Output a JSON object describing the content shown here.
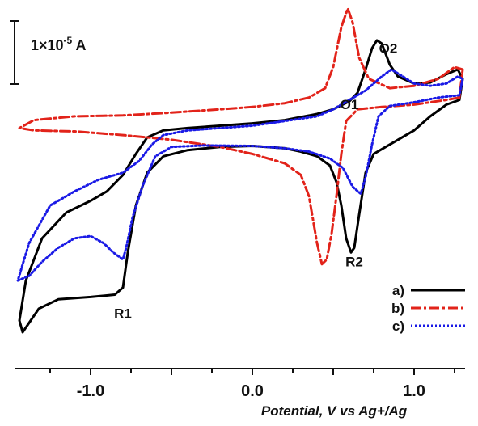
{
  "chart_data": {
    "type": "line",
    "xlabel": "Potential, V vs Ag+/Ag",
    "ylabel": "",
    "xlim": [
      -1.45,
      1.3
    ],
    "xticks": [
      {
        "value": -1.0,
        "label": "-1.0"
      },
      {
        "value": 0.0,
        "label": "0.0"
      },
      {
        "value": 1.0,
        "label": "1.0"
      }
    ],
    "minor_step": 0.25,
    "y_units": "×10^-5 A",
    "ylim": [
      -4.8,
      2.4
    ],
    "grid": false,
    "legend_position": "bottom-right",
    "scale_bar": {
      "label_base": "1×10",
      "label_exp": "-5",
      "label_unit": " A",
      "value": 1.0
    },
    "annotations": [
      {
        "text": "O1",
        "x": 0.6,
        "y": 0.45
      },
      {
        "text": "O2",
        "x": 0.84,
        "y": 1.65
      },
      {
        "text": "R1",
        "x": -0.8,
        "y": -4.0
      },
      {
        "text": "R2",
        "x": 0.63,
        "y": -2.9
      }
    ],
    "series": [
      {
        "name": "a)",
        "color": "#000000",
        "dash": "",
        "points": [
          [
            1.28,
            0.65
          ],
          [
            1.2,
            0.55
          ],
          [
            1.1,
            0.3
          ],
          [
            1.0,
            0.0
          ],
          [
            0.9,
            -0.2
          ],
          [
            0.8,
            -0.4
          ],
          [
            0.75,
            -0.5
          ],
          [
            0.7,
            -0.9
          ],
          [
            0.66,
            -1.8
          ],
          [
            0.63,
            -2.5
          ],
          [
            0.61,
            -2.6
          ],
          [
            0.58,
            -2.3
          ],
          [
            0.55,
            -1.6
          ],
          [
            0.52,
            -1.1
          ],
          [
            0.48,
            -0.75
          ],
          [
            0.4,
            -0.55
          ],
          [
            0.3,
            -0.45
          ],
          [
            0.2,
            -0.38
          ],
          [
            0.0,
            -0.33
          ],
          [
            -0.2,
            -0.35
          ],
          [
            -0.4,
            -0.42
          ],
          [
            -0.55,
            -0.55
          ],
          [
            -0.65,
            -0.9
          ],
          [
            -0.72,
            -1.6
          ],
          [
            -0.77,
            -2.6
          ],
          [
            -0.8,
            -3.35
          ],
          [
            -0.85,
            -3.5
          ],
          [
            -1.0,
            -3.55
          ],
          [
            -1.2,
            -3.6
          ],
          [
            -1.32,
            -3.8
          ],
          [
            -1.42,
            -4.3
          ]
        ],
        "points_return": [
          [
            -1.44,
            -4.05
          ],
          [
            -1.4,
            -3.2
          ],
          [
            -1.3,
            -2.3
          ],
          [
            -1.15,
            -1.75
          ],
          [
            -1.0,
            -1.5
          ],
          [
            -0.9,
            -1.3
          ],
          [
            -0.8,
            -0.95
          ],
          [
            -0.72,
            -0.5
          ],
          [
            -0.65,
            -0.15
          ],
          [
            -0.55,
            0.0
          ],
          [
            -0.4,
            0.05
          ],
          [
            -0.2,
            0.1
          ],
          [
            0.0,
            0.15
          ],
          [
            0.2,
            0.22
          ],
          [
            0.4,
            0.35
          ],
          [
            0.5,
            0.45
          ],
          [
            0.6,
            0.62
          ],
          [
            0.65,
            0.8
          ],
          [
            0.7,
            1.3
          ],
          [
            0.74,
            1.75
          ],
          [
            0.77,
            1.92
          ],
          [
            0.8,
            1.85
          ],
          [
            0.85,
            1.4
          ],
          [
            0.9,
            1.15
          ],
          [
            1.0,
            1.0
          ],
          [
            1.1,
            1.02
          ],
          [
            1.2,
            1.2
          ],
          [
            1.27,
            1.3
          ],
          [
            1.3,
            1.1
          ],
          [
            1.28,
            0.65
          ]
        ]
      },
      {
        "name": "b)",
        "color": "#e2231a",
        "dash": "12 4 3 4",
        "points": [
          [
            1.28,
            0.7
          ],
          [
            1.2,
            0.65
          ],
          [
            1.0,
            0.55
          ],
          [
            0.8,
            0.5
          ],
          [
            0.65,
            0.45
          ],
          [
            0.58,
            0.2
          ],
          [
            0.55,
            -0.5
          ],
          [
            0.52,
            -1.4
          ],
          [
            0.49,
            -2.2
          ],
          [
            0.46,
            -2.75
          ],
          [
            0.43,
            -2.85
          ],
          [
            0.4,
            -2.4
          ],
          [
            0.35,
            -1.4
          ],
          [
            0.3,
            -0.95
          ],
          [
            0.2,
            -0.7
          ],
          [
            0.0,
            -0.5
          ],
          [
            -0.2,
            -0.35
          ],
          [
            -0.5,
            -0.2
          ],
          [
            -0.8,
            -0.1
          ],
          [
            -1.1,
            -0.02
          ],
          [
            -1.35,
            0.0
          ],
          [
            -1.44,
            0.05
          ]
        ],
        "points_return": [
          [
            -1.44,
            0.05
          ],
          [
            -1.35,
            0.22
          ],
          [
            -1.1,
            0.3
          ],
          [
            -0.8,
            0.32
          ],
          [
            -0.5,
            0.38
          ],
          [
            -0.2,
            0.45
          ],
          [
            0.0,
            0.5
          ],
          [
            0.2,
            0.58
          ],
          [
            0.35,
            0.7
          ],
          [
            0.45,
            0.9
          ],
          [
            0.5,
            1.35
          ],
          [
            0.55,
            2.2
          ],
          [
            0.59,
            2.6
          ],
          [
            0.62,
            2.3
          ],
          [
            0.66,
            1.55
          ],
          [
            0.72,
            1.1
          ],
          [
            0.85,
            0.9
          ],
          [
            1.0,
            0.95
          ],
          [
            1.15,
            1.1
          ],
          [
            1.25,
            1.35
          ],
          [
            1.3,
            1.3
          ],
          [
            1.28,
            0.7
          ]
        ]
      },
      {
        "name": "c)",
        "color": "#1a1ae6",
        "dash": "2 3",
        "points": [
          [
            1.28,
            0.75
          ],
          [
            1.15,
            0.7
          ],
          [
            1.0,
            0.6
          ],
          [
            0.85,
            0.52
          ],
          [
            0.78,
            0.3
          ],
          [
            0.74,
            -0.3
          ],
          [
            0.7,
            -1.0
          ],
          [
            0.67,
            -1.35
          ],
          [
            0.62,
            -1.2
          ],
          [
            0.56,
            -0.8
          ],
          [
            0.48,
            -0.6
          ],
          [
            0.35,
            -0.45
          ],
          [
            0.2,
            -0.38
          ],
          [
            0.0,
            -0.33
          ],
          [
            -0.3,
            -0.32
          ],
          [
            -0.5,
            -0.35
          ],
          [
            -0.6,
            -0.55
          ],
          [
            -0.68,
            -1.2
          ],
          [
            -0.74,
            -1.85
          ],
          [
            -0.78,
            -2.5
          ],
          [
            -0.8,
            -2.75
          ],
          [
            -0.86,
            -2.6
          ],
          [
            -0.92,
            -2.4
          ],
          [
            -1.0,
            -2.25
          ],
          [
            -1.1,
            -2.3
          ],
          [
            -1.2,
            -2.5
          ],
          [
            -1.3,
            -2.8
          ],
          [
            -1.38,
            -3.1
          ],
          [
            -1.45,
            -3.2
          ]
        ],
        "points_return": [
          [
            -1.45,
            -3.2
          ],
          [
            -1.38,
            -2.4
          ],
          [
            -1.25,
            -1.6
          ],
          [
            -1.1,
            -1.3
          ],
          [
            -0.95,
            -1.05
          ],
          [
            -0.8,
            -0.9
          ],
          [
            -0.7,
            -0.65
          ],
          [
            -0.62,
            -0.3
          ],
          [
            -0.55,
            -0.1
          ],
          [
            -0.4,
            0.0
          ],
          [
            -0.2,
            0.05
          ],
          [
            0.0,
            0.1
          ],
          [
            0.2,
            0.2
          ],
          [
            0.4,
            0.3
          ],
          [
            0.5,
            0.45
          ],
          [
            0.6,
            0.65
          ],
          [
            0.7,
            0.85
          ],
          [
            0.8,
            1.15
          ],
          [
            0.86,
            1.3
          ],
          [
            0.93,
            1.15
          ],
          [
            1.0,
            1.0
          ],
          [
            1.1,
            0.95
          ],
          [
            1.2,
            1.0
          ],
          [
            1.27,
            1.15
          ],
          [
            1.3,
            1.1
          ],
          [
            1.28,
            0.75
          ]
        ]
      }
    ]
  }
}
